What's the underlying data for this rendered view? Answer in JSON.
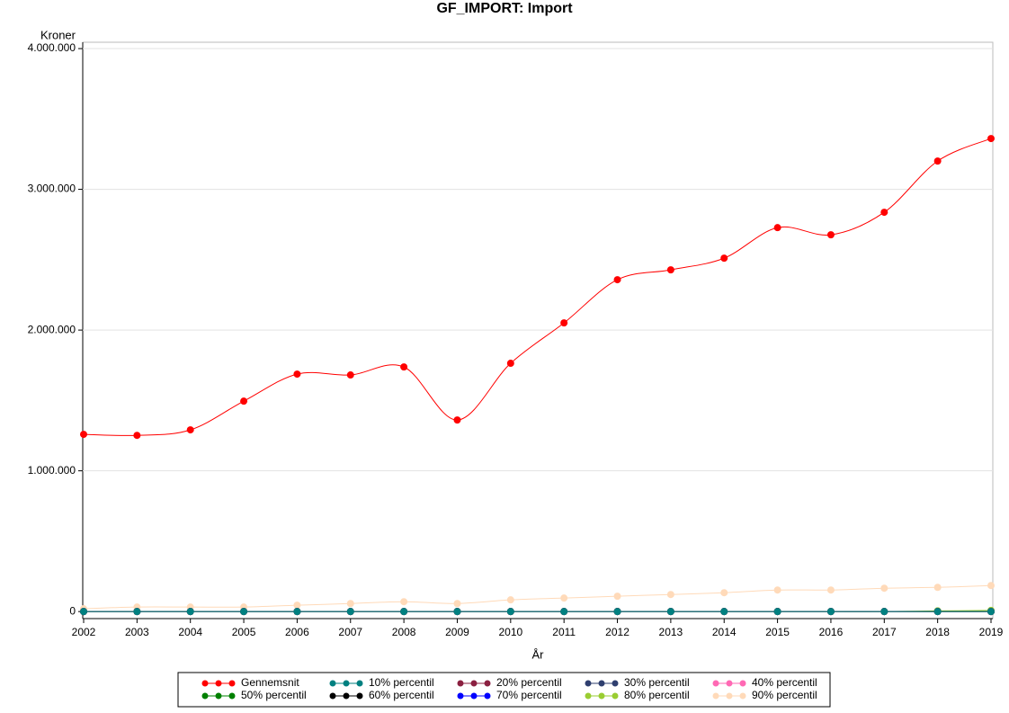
{
  "chart_data": {
    "type": "line",
    "title": "GF_IMPORT: Import",
    "y_label": "Kroner",
    "x_label": "År",
    "x": [
      2002,
      2003,
      2004,
      2005,
      2006,
      2007,
      2008,
      2009,
      2010,
      2011,
      2012,
      2013,
      2014,
      2015,
      2016,
      2017,
      2018,
      2019
    ],
    "xlim": [
      2002,
      2019
    ],
    "xticks": [
      2002,
      2003,
      2004,
      2005,
      2006,
      2007,
      2008,
      2009,
      2010,
      2011,
      2012,
      2013,
      2014,
      2015,
      2016,
      2017,
      2018,
      2019
    ],
    "ylim": [
      -50000,
      4045000
    ],
    "yticks": [
      0,
      {
        "value": 1000000,
        "label": "1.000.000"
      },
      {
        "value": 2000000,
        "label": "2.000.000"
      },
      {
        "value": 3000000,
        "label": "3.000.000"
      },
      {
        "value": 4000000,
        "label": "4.000.000"
      }
    ],
    "grid": true,
    "legend": "bottom",
    "series": [
      {
        "name": "Gennemsnit",
        "color": "#ff0000",
        "values": [
          1259000,
          1252000,
          1291000,
          1495000,
          1687000,
          1681000,
          1738000,
          1361000,
          1764000,
          2051000,
          2358000,
          2428000,
          2511000,
          2728000,
          2677000,
          2837000,
          3201000,
          3361000
        ]
      },
      {
        "name": "10% percentil",
        "color": "#008080",
        "values": [
          0,
          0,
          0,
          0,
          0,
          0,
          0,
          0,
          0,
          0,
          0,
          0,
          0,
          0,
          0,
          0,
          0,
          0
        ]
      },
      {
        "name": "20% percentil",
        "color": "#8b2040",
        "values": [
          0,
          0,
          0,
          0,
          0,
          0,
          0,
          0,
          0,
          0,
          0,
          0,
          0,
          0,
          0,
          0,
          0,
          0
        ]
      },
      {
        "name": "30% percentil",
        "color": "#2f3f6f",
        "values": [
          0,
          0,
          0,
          0,
          0,
          0,
          0,
          0,
          0,
          0,
          0,
          0,
          0,
          0,
          0,
          0,
          0,
          0
        ]
      },
      {
        "name": "40% percentil",
        "color": "#ff69b4",
        "values": [
          0,
          0,
          0,
          0,
          0,
          0,
          0,
          0,
          0,
          0,
          0,
          0,
          0,
          0,
          0,
          0,
          0,
          0
        ]
      },
      {
        "name": "50% percentil",
        "color": "#008000",
        "values": [
          0,
          0,
          0,
          0,
          0,
          0,
          0,
          0,
          0,
          0,
          0,
          0,
          0,
          0,
          0,
          0,
          0,
          0
        ]
      },
      {
        "name": "60% percentil",
        "color": "#000000",
        "values": [
          0,
          0,
          0,
          0,
          0,
          0,
          0,
          0,
          0,
          0,
          0,
          0,
          0,
          0,
          0,
          0,
          0,
          0
        ]
      },
      {
        "name": "70% percentil",
        "color": "#0000ff",
        "values": [
          0,
          0,
          0,
          0,
          0,
          0,
          0,
          0,
          0,
          0,
          0,
          0,
          0,
          0,
          0,
          0,
          0,
          0
        ]
      },
      {
        "name": "80% percentil",
        "color": "#9acd32",
        "values": [
          0,
          0,
          0,
          0,
          0,
          0,
          0,
          0,
          0,
          0,
          0,
          0,
          0,
          0,
          0,
          0,
          5000,
          8000
        ]
      },
      {
        "name": "90% percentil",
        "color": "#ffdab9",
        "values": [
          20000,
          32000,
          32000,
          32000,
          45000,
          57000,
          70000,
          57000,
          83000,
          96000,
          109000,
          121000,
          134000,
          153000,
          153000,
          166000,
          172000,
          185000
        ]
      }
    ]
  }
}
